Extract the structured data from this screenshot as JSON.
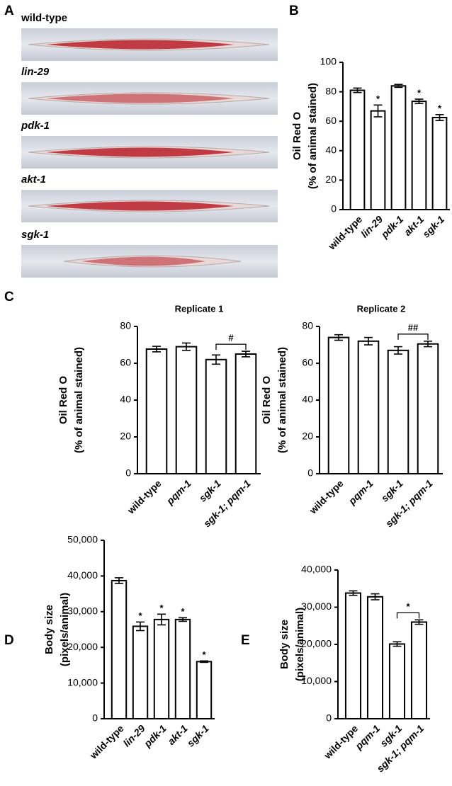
{
  "figure": {
    "panel_labels": [
      "A",
      "B",
      "C",
      "D",
      "E"
    ],
    "image_labels": [
      "wild-type",
      "lin-29",
      "pdk-1",
      "akt-1",
      "sgk-1"
    ]
  },
  "chart_data": [
    {
      "type": "bar",
      "ylabel": [
        "Oil Red O",
        "(% of animal stained)"
      ],
      "categories": [
        "wild-type",
        "lin-29",
        "pdk-1",
        "akt-1",
        "sgk-1"
      ],
      "values": [
        81,
        67,
        84,
        73.5,
        62.5
      ],
      "errors": [
        1.5,
        4,
        1,
        1.5,
        2
      ],
      "markers": [
        null,
        "*",
        null,
        "*",
        "*"
      ],
      "ylim": [
        0,
        100
      ],
      "yticks": [
        0,
        20,
        40,
        60,
        80,
        100
      ],
      "color": "#ffffff"
    },
    {
      "type": "bar",
      "title": "Replicate 1",
      "ylabel": [
        "Oil Red O",
        "(% of animal stained)"
      ],
      "categories": [
        "wild-type",
        "pqm-1",
        "sgk-1",
        "sgk-1; pqm-1"
      ],
      "values": [
        67.7,
        69,
        62,
        65
      ],
      "errors": [
        1.5,
        2,
        2.5,
        1.5
      ],
      "bracket": {
        "from": 2,
        "to": 3,
        "text": "#"
      },
      "ylim": [
        0,
        80
      ],
      "yticks": [
        0,
        20,
        40,
        60,
        80
      ],
      "color": "#ffffff"
    },
    {
      "type": "bar",
      "title": "Replicate 2",
      "ylabel": [
        "Oil Red O",
        "(% of animal stained)"
      ],
      "categories": [
        "wild-type",
        "pqm-1",
        "sgk-1",
        "sgk-1; pqm-1"
      ],
      "values": [
        74,
        72,
        67,
        70.5
      ],
      "errors": [
        1.5,
        2,
        2,
        1.5
      ],
      "bracket": {
        "from": 2,
        "to": 3,
        "text": "##"
      },
      "ylim": [
        0,
        80
      ],
      "yticks": [
        0,
        20,
        40,
        60,
        80
      ],
      "color": "#ffffff"
    },
    {
      "type": "bar",
      "ylabel": [
        "Body size",
        "(pixels/animal)"
      ],
      "categories": [
        "wild-type",
        "lin-29",
        "pdk-1",
        "akt-1",
        "sgk-1"
      ],
      "values": [
        38700,
        25900,
        27800,
        27800,
        16000
      ],
      "errors": [
        800,
        1200,
        1500,
        500,
        200
      ],
      "markers": [
        null,
        "*",
        "*",
        "*",
        "*"
      ],
      "ylim": [
        0,
        50000
      ],
      "yticks": [
        0,
        {
          "value": 10000,
          "label": "10,000"
        },
        {
          "value": 20000,
          "label": "20,000"
        },
        {
          "value": 30000,
          "label": "30,000"
        },
        {
          "value": 40000,
          "label": "40,000"
        },
        {
          "value": 50000,
          "label": "50,000"
        }
      ],
      "color": "#ffffff"
    },
    {
      "type": "bar",
      "ylabel": [
        "Body size",
        "(pixels/animal)"
      ],
      "categories": [
        "wild-type",
        "pqm-1",
        "sgk-1",
        "sgk-1; pqm-1"
      ],
      "values": [
        33800,
        32800,
        20100,
        26000
      ],
      "errors": [
        600,
        800,
        600,
        600
      ],
      "bracket": {
        "from": 2,
        "to": 3,
        "text": "*"
      },
      "ylim": [
        0,
        40000
      ],
      "yticks": [
        0,
        {
          "value": 10000,
          "label": "10,000"
        },
        {
          "value": 20000,
          "label": "20,000"
        },
        {
          "value": 30000,
          "label": "30,000"
        },
        {
          "value": 40000,
          "label": "40,000"
        }
      ],
      "color": "#ffffff"
    }
  ]
}
